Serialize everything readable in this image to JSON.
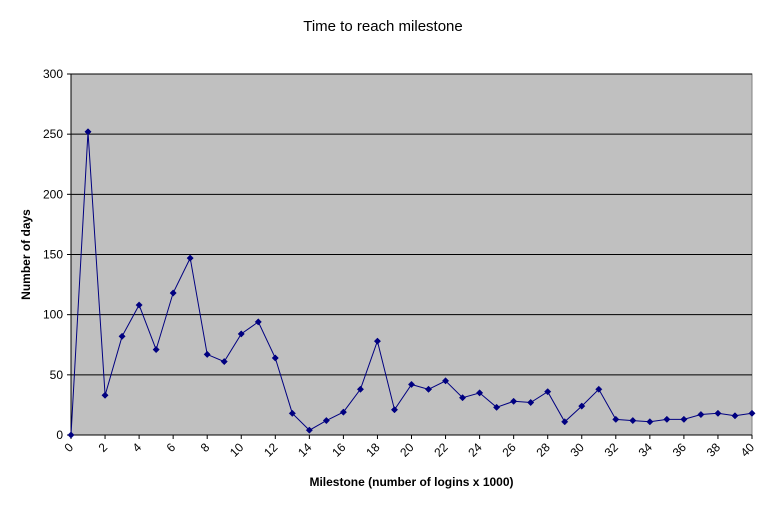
{
  "chart_data": {
    "type": "line",
    "title": "Time to reach milestone",
    "xlabel": "Milestone (number of logins x 1000)",
    "ylabel": "Number of days",
    "xlim": [
      0,
      40
    ],
    "ylim": [
      0,
      300
    ],
    "x_ticks": [
      "0",
      "2",
      "4",
      "6",
      "8",
      "10",
      "12",
      "14",
      "16",
      "18",
      "20",
      "22",
      "24",
      "26",
      "28",
      "30",
      "32",
      "34",
      "36",
      "38",
      "40"
    ],
    "y_ticks": [
      "0",
      "50",
      "100",
      "150",
      "200",
      "250",
      "300"
    ],
    "grid": true,
    "legend": "none",
    "colors": {
      "plot_background": "#c0c0c0",
      "series": "#000080",
      "gridline": "#000000"
    },
    "series": [
      {
        "x": [
          0,
          1,
          2,
          3,
          4,
          5,
          6,
          7,
          8,
          9,
          10,
          11,
          12,
          13,
          14,
          15,
          16,
          17,
          18,
          19,
          20,
          21,
          22,
          23,
          24,
          25,
          26,
          27,
          28,
          29,
          30,
          31,
          32,
          33,
          34,
          35,
          36,
          37,
          38,
          39,
          40
        ],
        "values": [
          0,
          252,
          33,
          82,
          108,
          71,
          118,
          147,
          67,
          61,
          84,
          94,
          64,
          18,
          4,
          12,
          19,
          38,
          78,
          21,
          42,
          38,
          45,
          31,
          35,
          23,
          28,
          27,
          36,
          11,
          24,
          38,
          13,
          12,
          11,
          13,
          13,
          17,
          18,
          16,
          18
        ]
      }
    ]
  }
}
